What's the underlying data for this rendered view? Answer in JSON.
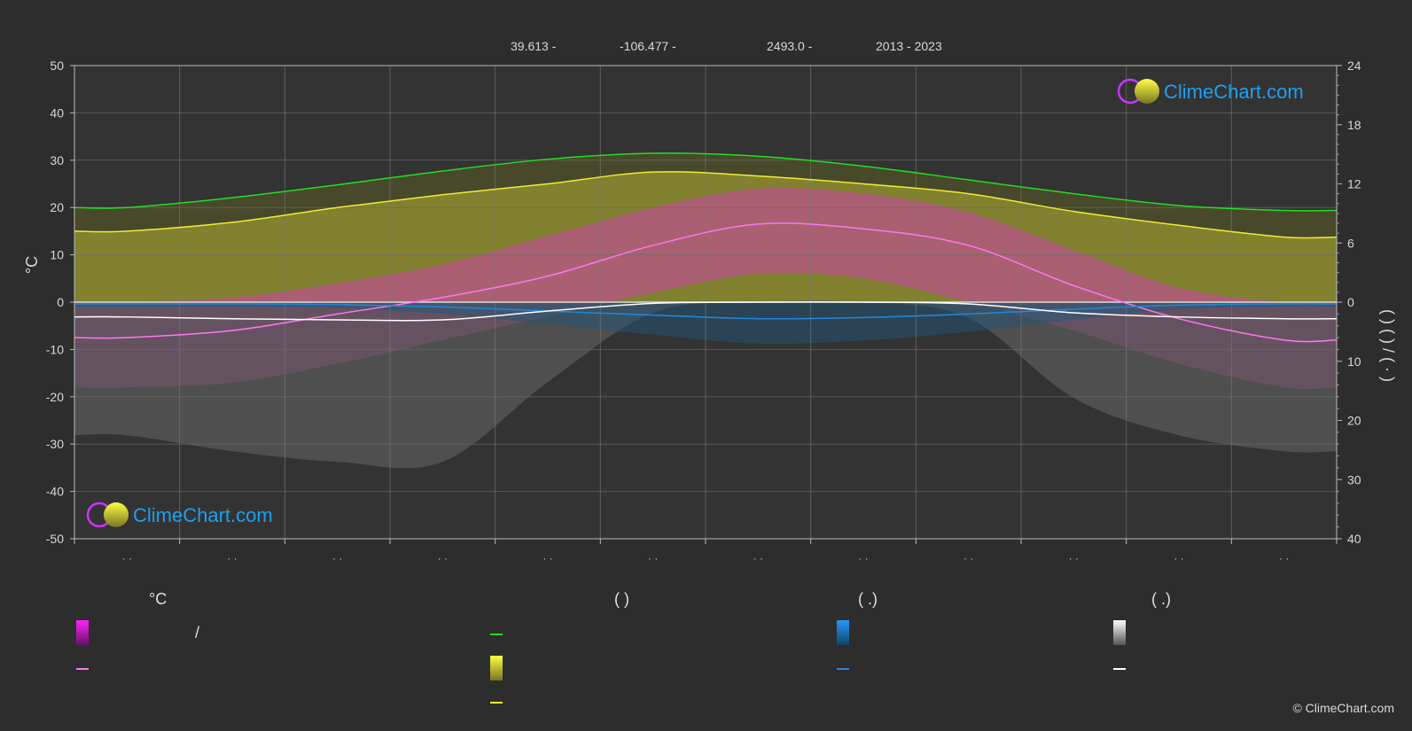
{
  "header": {
    "lat": "39.613 -",
    "lon": "-106.477 -",
    "elev": "2493.0 -",
    "period": "2013 - 2023"
  },
  "brand": {
    "name": "ClimeChart.com",
    "copyright": "© ClimeChart.com"
  },
  "colors": {
    "background": "#2d2d2d",
    "daylight": "#22dd22",
    "sunshine": "#eeee33",
    "avg_max_temp": "#ff77ee",
    "precip": "#2288dd",
    "snow": "#ffffff",
    "brand": "#1ea0f0"
  },
  "legend": {
    "temp_title": "°C",
    "temp_slash": "/",
    "sun_paren": "(          )",
    "rain_paren": "(   .)",
    "snow_paren": "(   .)"
  },
  "chart_data": {
    "type": "line",
    "x_count": 12,
    "month_labels": [
      "· ·",
      "· ·",
      "· ·",
      "· ·",
      "· ·",
      "· ·",
      "· ·",
      "· ·",
      "· ·",
      "· ·",
      "· ·",
      "· ·"
    ],
    "ylabel_left": "°C",
    "ylabel_right": "(   )      (   )     /       ( · )",
    "ylim_left": [
      -50,
      50
    ],
    "yticks_left": [
      50,
      40,
      30,
      20,
      10,
      0,
      -10,
      -20,
      -30,
      -40,
      -50
    ],
    "ylim_right_top": [
      0,
      24
    ],
    "yticks_right_top": [
      24,
      18,
      12,
      6,
      0
    ],
    "ylim_right_bottom": [
      0,
      40
    ],
    "yticks_right_bottom": [
      10,
      20,
      30,
      40
    ],
    "grid": true,
    "series": [
      {
        "key": "daylight_hours",
        "color": "#22dd22",
        "axis": "right_top",
        "values": [
          9.6,
          10.6,
          11.9,
          13.3,
          14.5,
          15.1,
          14.8,
          13.8,
          12.4,
          11.0,
          9.8,
          9.3
        ]
      },
      {
        "key": "sunshine_hours",
        "color": "#eeee33",
        "axis": "right_top",
        "values": [
          7.2,
          8.1,
          9.6,
          10.9,
          12.0,
          13.2,
          12.8,
          12.0,
          11.0,
          9.2,
          7.8,
          6.6
        ]
      },
      {
        "key": "avg_temp",
        "color": "#ff77ee",
        "axis": "left",
        "values": [
          -7.5,
          -6.0,
          -2.5,
          1.0,
          5.5,
          12.0,
          16.5,
          15.5,
          12.0,
          3.5,
          -3.5,
          -8.0
        ]
      },
      {
        "key": "avg_max_temp_band",
        "color": "#d64fb0",
        "axis": "left",
        "values": [
          0,
          1,
          4,
          8,
          14,
          20,
          24,
          23,
          19,
          11,
          3,
          0
        ]
      },
      {
        "key": "avg_min_temp_band",
        "color": "#b020b0",
        "axis": "left",
        "values": [
          -18,
          -17,
          -13,
          -8,
          -3,
          2,
          6,
          5,
          0,
          -6,
          -13,
          -18
        ]
      },
      {
        "key": "precip_mm",
        "color": "#2288dd",
        "axis": "right_bottom",
        "values": [
          0.3,
          0.3,
          0.4,
          0.8,
          1.5,
          2.2,
          2.8,
          2.6,
          2.0,
          1.2,
          0.5,
          0.3
        ]
      },
      {
        "key": "snow_cm",
        "color": "#ffffff",
        "axis": "right_bottom",
        "values": [
          2.5,
          2.8,
          3.0,
          3.0,
          1.5,
          0.2,
          0.0,
          0.0,
          0.3,
          1.8,
          2.5,
          2.8
        ]
      }
    ]
  }
}
